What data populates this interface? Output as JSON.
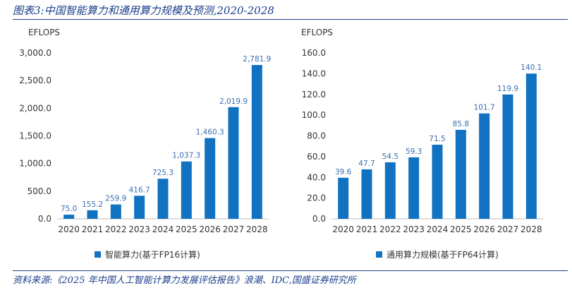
{
  "title": "图表3:中国智能算力和通用算力规模及预测,2020-2028",
  "source": "资料来源:《2025 年中国人工智能计算力发展评估报告》浪潮、IDC,国盛证券研究所",
  "colors": {
    "bar": "#1072c1",
    "title": "#1b3f8b",
    "label": "#3a6fb0"
  },
  "chart_data": [
    {
      "type": "bar",
      "unit": "EFLOPS",
      "categories": [
        "2020",
        "2021",
        "2022",
        "2023",
        "2024",
        "2025",
        "2026",
        "2027",
        "2028"
      ],
      "series": [
        {
          "name": "智能算力(基于FP16计算)",
          "values": [
            75.0,
            155.2,
            259.9,
            416.7,
            725.3,
            1037.3,
            1460.3,
            2019.9,
            2781.9
          ],
          "labels": [
            "75.0",
            "155.2",
            "259.9",
            "416.7",
            "725.3",
            "1,037.3",
            "1,460.3",
            "2,019.9",
            "2,781.9"
          ]
        }
      ],
      "ylim": [
        0,
        3000
      ],
      "yticks": [
        0,
        500,
        1000,
        1500,
        2000,
        2500,
        3000
      ],
      "yticklabels": [
        "0.0",
        "500.0",
        "1,000.0",
        "1,500.0",
        "2,000.0",
        "2,500.0",
        "3,000.0"
      ],
      "legend": "bottom",
      "grid": false
    },
    {
      "type": "bar",
      "unit": "EFLOPS",
      "categories": [
        "2020",
        "2021",
        "2022",
        "2023",
        "2024",
        "2025",
        "2026",
        "2027",
        "2028"
      ],
      "series": [
        {
          "name": "通用算力规模(基于FP64计算)",
          "values": [
            39.6,
            47.7,
            54.5,
            59.3,
            71.5,
            85.8,
            101.7,
            119.9,
            140.1
          ],
          "labels": [
            "39.6",
            "47.7",
            "54.5",
            "59.3",
            "71.5",
            "85.8",
            "101.7",
            "119.9",
            "140.1"
          ]
        }
      ],
      "ylim": [
        0,
        160
      ],
      "yticks": [
        0,
        20,
        40,
        60,
        80,
        100,
        120,
        140,
        160
      ],
      "yticklabels": [
        "0.0",
        "20.0",
        "40.0",
        "60.0",
        "80.0",
        "100.0",
        "120.0",
        "140.0",
        "160.0"
      ],
      "legend": "bottom",
      "grid": false
    }
  ]
}
